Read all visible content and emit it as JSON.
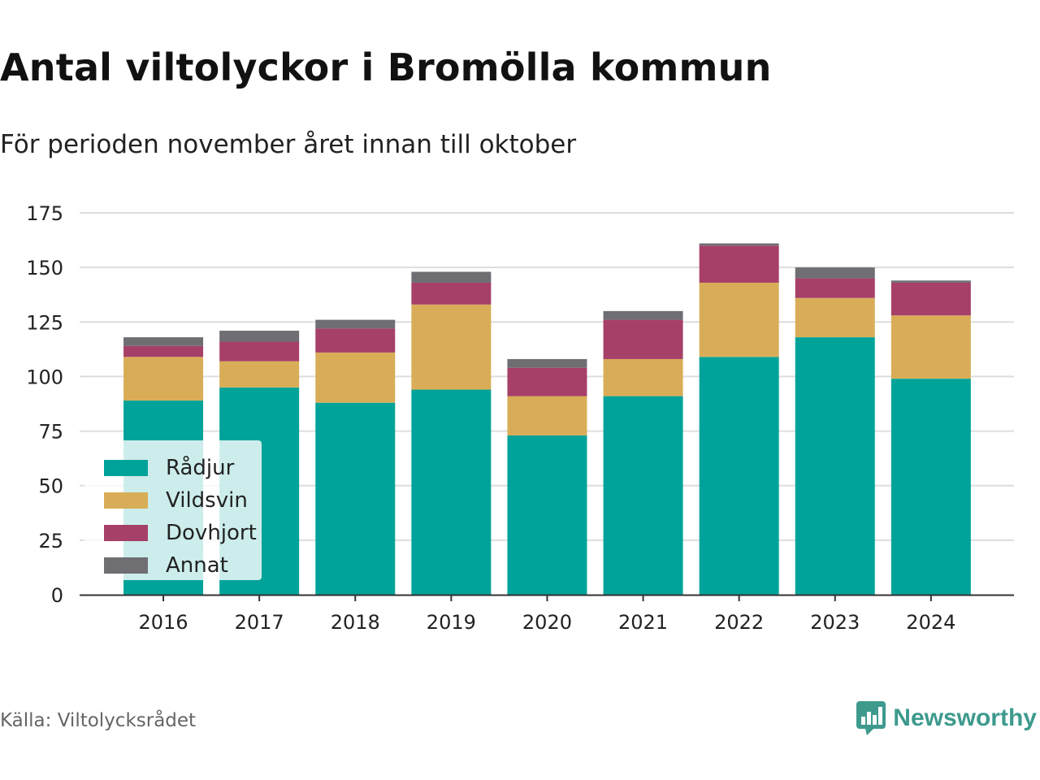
{
  "title": "Antal viltolyckor i Bromölla kommun",
  "subtitle": "För perioden november året innan till oktober",
  "source": "Källa: Viltolycksrådet",
  "brand": {
    "name": "Newsworthy",
    "logo_icon": "bar-chart-speech-bubble-icon",
    "color": "#3d9a8d"
  },
  "chart_data": {
    "type": "bar",
    "stacked": true,
    "categories": [
      "2016",
      "2017",
      "2018",
      "2019",
      "2020",
      "2021",
      "2022",
      "2023",
      "2024"
    ],
    "series": [
      {
        "name": "Rådjur",
        "color": "#00a39a",
        "values": [
          89,
          95,
          88,
          94,
          73,
          91,
          109,
          118,
          99
        ]
      },
      {
        "name": "Vildsvin",
        "color": "#d9ad58",
        "values": [
          20,
          12,
          23,
          39,
          18,
          17,
          34,
          18,
          29
        ]
      },
      {
        "name": "Dovhjort",
        "color": "#a64069",
        "values": [
          5,
          9,
          11,
          10,
          13,
          18,
          17,
          9,
          15
        ]
      },
      {
        "name": "Annat",
        "color": "#6e6e73",
        "values": [
          4,
          5,
          4,
          5,
          4,
          4,
          1,
          5,
          1
        ]
      }
    ],
    "ylim": [
      0,
      175
    ],
    "yticks": [
      0,
      25,
      50,
      75,
      100,
      125,
      150,
      175
    ],
    "grid": true,
    "legend": "bottom-left"
  }
}
